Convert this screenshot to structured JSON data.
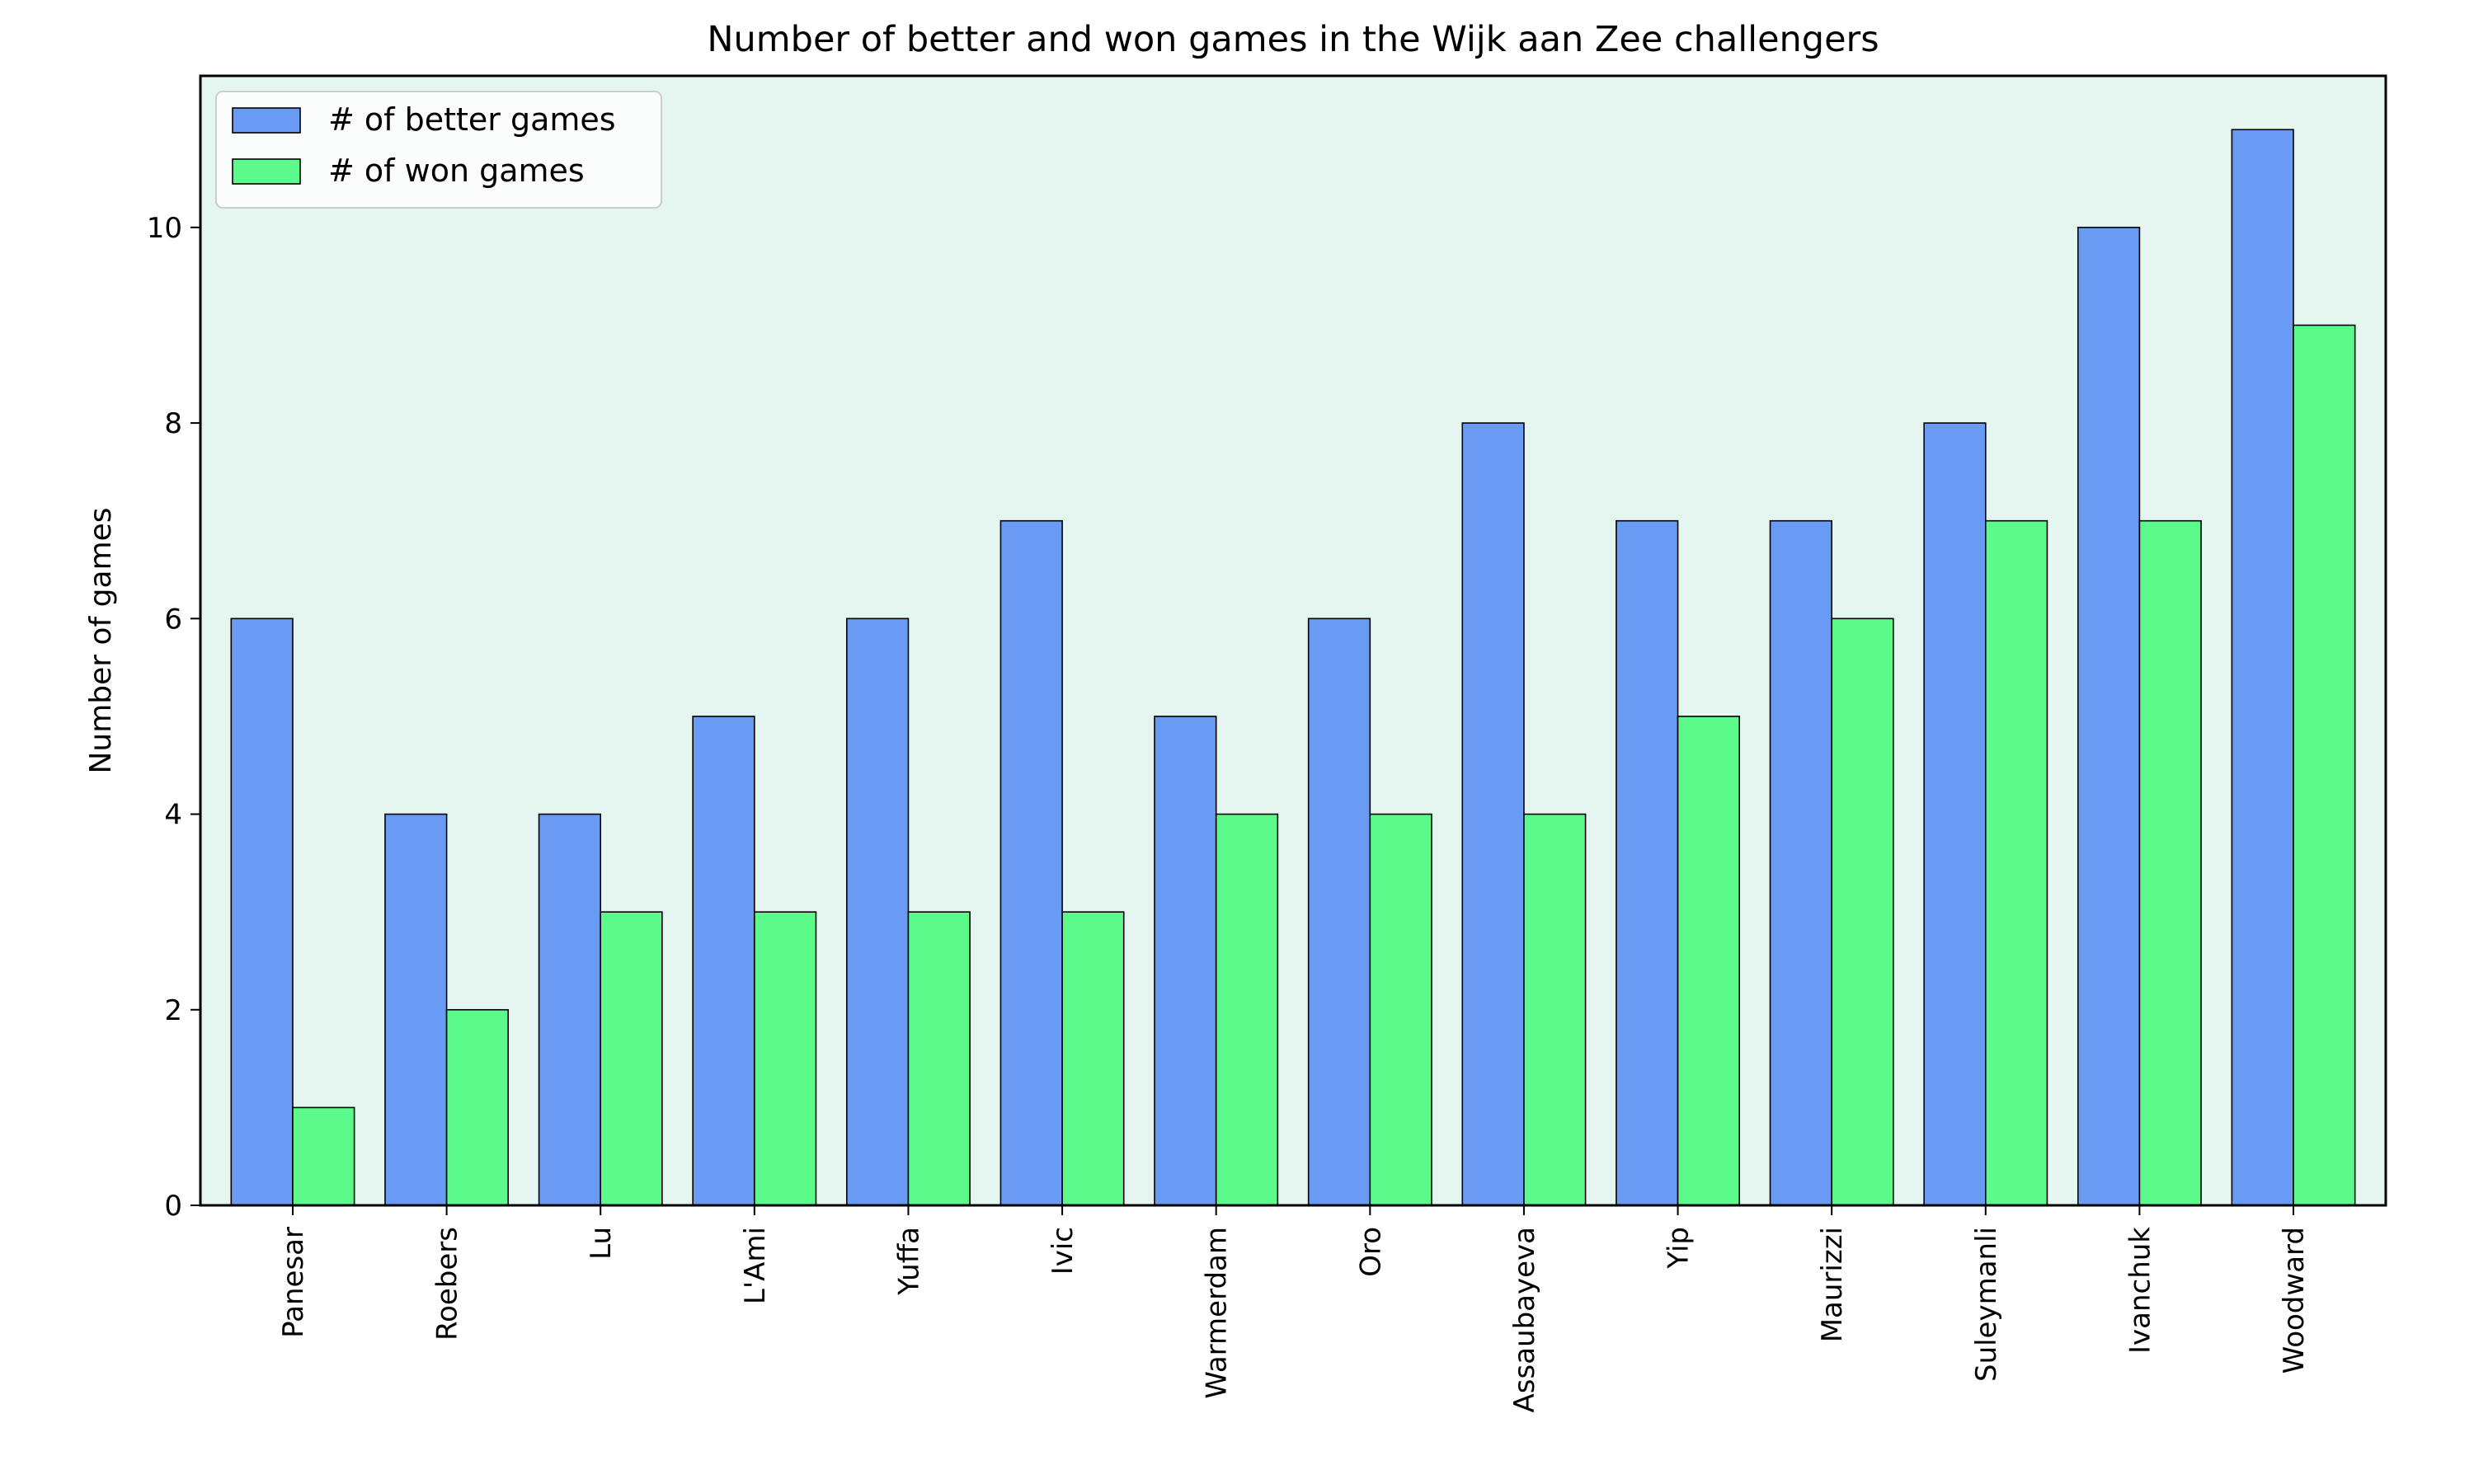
{
  "chart_data": {
    "type": "bar",
    "title": "Number of better and won games in the Wijk aan Zee challengers",
    "xlabel": "",
    "ylabel": "Number of games",
    "categories": [
      "Panesar",
      "Roebers",
      "Lu",
      "L'Ami",
      "Yuffa",
      "Ivic",
      "Warmerdam",
      "Oro",
      "Assaubayeva",
      "Yip",
      "Maurizzi",
      "Suleymanli",
      "Ivanchuk",
      "Woodward"
    ],
    "series": [
      {
        "name": "# of better games",
        "color": "#6a9bf4",
        "values": [
          6,
          4,
          4,
          5,
          6,
          7,
          5,
          6,
          8,
          7,
          7,
          8,
          10,
          11
        ]
      },
      {
        "name": "# of won games",
        "color": "#5bfa8b",
        "values": [
          1,
          2,
          3,
          3,
          3,
          3,
          4,
          4,
          4,
          5,
          6,
          7,
          7,
          9
        ]
      }
    ],
    "ylim": [
      0,
      11.55
    ],
    "yticks": [
      0,
      2,
      4,
      6,
      8,
      10
    ],
    "grid": false,
    "legend_position": "top-left",
    "plot_background": "#e5f6f0"
  }
}
